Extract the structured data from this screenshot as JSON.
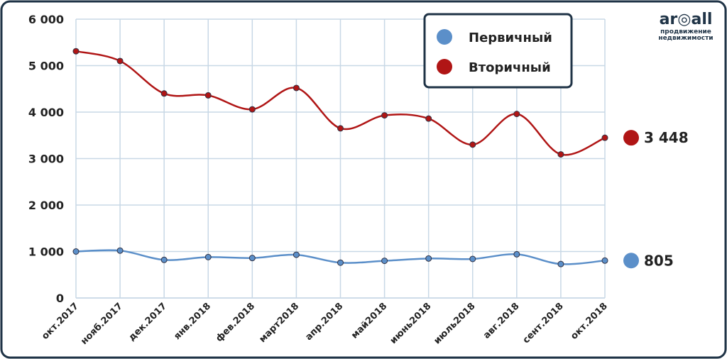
{
  "chart_data": {
    "type": "line",
    "categories": [
      "окт.2017",
      "нояб.2017",
      "дек.2017",
      "янв.2018",
      "фев.2018",
      "март2018",
      "апр.2018",
      "май2018",
      "июнь2018",
      "июль2018",
      "авг.2018",
      "сент.2018",
      "окт.2018"
    ],
    "series": [
      {
        "name": "Первичный",
        "color": "#5b8fc9",
        "values": [
          1000,
          1020,
          820,
          880,
          860,
          930,
          760,
          800,
          850,
          840,
          940,
          730,
          805
        ]
      },
      {
        "name": "Вторичный",
        "color": "#b01515",
        "values": [
          5310,
          5100,
          4400,
          4360,
          4060,
          4520,
          3650,
          3930,
          3860,
          3300,
          3960,
          3090,
          3448
        ],
        "value_labels": [
          null,
          null,
          null,
          null,
          null,
          null,
          null,
          null,
          null,
          null,
          null,
          null,
          "3 448"
        ]
      }
    ],
    "ylim": [
      0,
      6000
    ],
    "yticks": [
      0,
      {
        "value": 1000,
        "label": "1 000"
      },
      {
        "value": 2000,
        "label": "2 000"
      },
      {
        "value": 3000,
        "label": "3 000"
      },
      {
        "value": 4000,
        "label": "4 000"
      },
      {
        "value": 5000,
        "label": "5 000"
      },
      {
        "value": 6000,
        "label": "6 000"
      }
    ],
    "grid": true,
    "legend": "top-right"
  },
  "logo": {
    "name": "ar◎all",
    "tagline": [
      "продвижение",
      "недвижимости"
    ]
  }
}
